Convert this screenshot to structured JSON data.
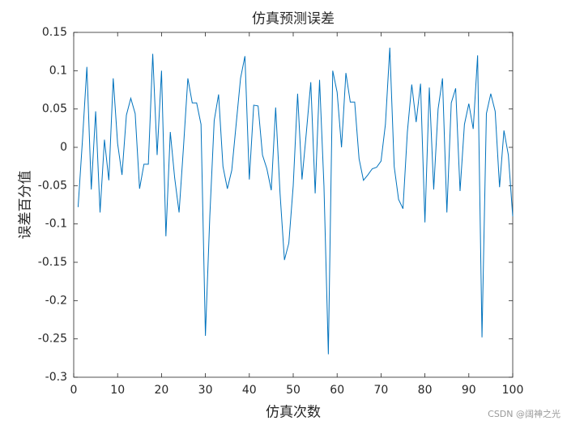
{
  "chart_data": {
    "type": "line",
    "title": "仿真预测误差",
    "x_label": "仿真次数",
    "y_label": "误差百分值",
    "watermark": "CSDN @阔神之光",
    "color": "#0072bd",
    "x": [
      1,
      2,
      3,
      4,
      5,
      6,
      7,
      8,
      9,
      10,
      11,
      12,
      13,
      14,
      15,
      16,
      17,
      18,
      19,
      20,
      21,
      22,
      23,
      24,
      25,
      26,
      27,
      28,
      29,
      30,
      31,
      32,
      33,
      34,
      35,
      36,
      37,
      38,
      39,
      40,
      41,
      42,
      43,
      44,
      45,
      46,
      47,
      48,
      49,
      50,
      51,
      52,
      53,
      54,
      55,
      56,
      57,
      58,
      59,
      60,
      61,
      62,
      63,
      64,
      65,
      66,
      67,
      68,
      69,
      70,
      71,
      72,
      73,
      74,
      75,
      76,
      77,
      78,
      79,
      80,
      81,
      82,
      83,
      84,
      85,
      86,
      87,
      88,
      89,
      90,
      91,
      92,
      93,
      94,
      95,
      96,
      97,
      98,
      99,
      100
    ],
    "values": [
      -0.078,
      0.01,
      0.105,
      -0.055,
      0.047,
      -0.085,
      0.01,
      -0.043,
      0.09,
      0.005,
      -0.036,
      0.042,
      0.064,
      0.044,
      -0.054,
      -0.022,
      -0.022,
      0.122,
      -0.01,
      0.1,
      -0.116,
      0.02,
      -0.04,
      -0.085,
      0.0,
      0.09,
      0.058,
      0.058,
      0.03,
      -0.246,
      -0.09,
      0.035,
      0.069,
      -0.025,
      -0.054,
      -0.03,
      0.03,
      0.09,
      0.119,
      -0.042,
      0.055,
      0.054,
      -0.01,
      -0.028,
      -0.056,
      0.052,
      -0.06,
      -0.147,
      -0.125,
      -0.05,
      0.07,
      -0.042,
      0.02,
      0.085,
      -0.06,
      0.088,
      -0.05,
      -0.27,
      0.1,
      0.072,
      0.0,
      0.097,
      0.059,
      0.059,
      -0.015,
      -0.043,
      -0.036,
      -0.028,
      -0.026,
      -0.018,
      0.03,
      0.13,
      -0.025,
      -0.068,
      -0.08,
      0.02,
      0.082,
      0.033,
      0.083,
      -0.098,
      0.078,
      -0.055,
      0.05,
      0.09,
      -0.085,
      0.058,
      0.077,
      -0.057,
      0.03,
      0.057,
      0.024,
      0.12,
      -0.248,
      0.044,
      0.07,
      0.047,
      -0.052,
      0.022,
      -0.01,
      -0.09
    ],
    "xlim": [
      0,
      100
    ],
    "xticks": [
      0,
      10,
      20,
      30,
      40,
      50,
      60,
      70,
      80,
      90,
      100
    ],
    "ylim": [
      -0.3,
      0.15
    ],
    "yticks": [
      -0.3,
      -0.25,
      -0.2,
      -0.15,
      -0.1,
      -0.05,
      0,
      0.05,
      0.1,
      0.15
    ]
  }
}
